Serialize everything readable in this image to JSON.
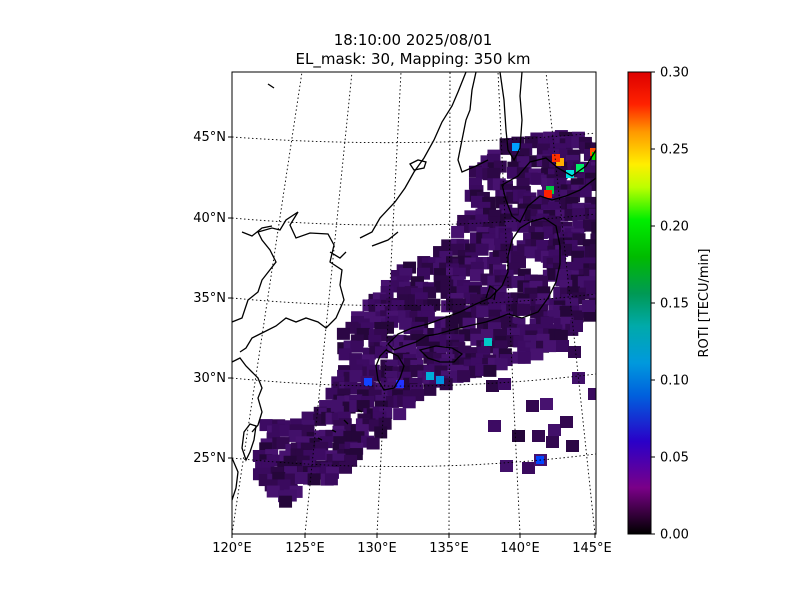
{
  "title": {
    "line1": "18:10:00 2025/08/01",
    "line2": "EL_mask: 30, Mapping: 350 km"
  },
  "map": {
    "lon_ticks": [
      "120°E",
      "125°E",
      "130°E",
      "135°E",
      "140°E",
      "145°E"
    ],
    "lat_ticks": [
      "25°N",
      "30°N",
      "35°N",
      "40°N",
      "45°N"
    ],
    "lon_range": [
      120,
      145
    ],
    "lat_range": [
      20,
      49
    ],
    "projection": "conic",
    "grid": "dotted"
  },
  "colorbar": {
    "label": "ROTI [TECU/min]",
    "ticks": [
      "0.00",
      "0.05",
      "0.10",
      "0.15",
      "0.20",
      "0.25",
      "0.30"
    ],
    "range": [
      0,
      0.3
    ],
    "colormap": "nipy_spectral"
  },
  "colors": {
    "dominant_cell": "#3a0a5e",
    "frame": "#000000"
  }
}
